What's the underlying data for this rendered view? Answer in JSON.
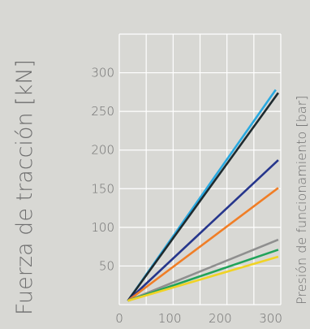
{
  "chart_data": {
    "type": "line",
    "title": "",
    "ylabel": "Fuerza de tracción [kN]",
    "xlabel": "Presión de funcionamiento [bar]",
    "xlim": [
      0,
      320
    ],
    "ylim": [
      0,
      350
    ],
    "xticks": [
      0,
      100,
      200,
      300
    ],
    "yticks": [
      50,
      100,
      150,
      200,
      250,
      300
    ],
    "grid": true,
    "series": [
      {
        "color": "#29a9e0",
        "x": [
          17,
          310
        ],
        "y": [
          5,
          278
        ]
      },
      {
        "color": "#1e2a2e",
        "x": [
          17,
          315
        ],
        "y": [
          5,
          274
        ]
      },
      {
        "color": "#26368c",
        "x": [
          17,
          315
        ],
        "y": [
          5,
          187
        ]
      },
      {
        "color": "#f07e26",
        "x": [
          17,
          315
        ],
        "y": [
          5,
          151
        ]
      },
      {
        "color": "#8f8f8f",
        "x": [
          17,
          315
        ],
        "y": [
          5,
          84
        ]
      },
      {
        "color": "#21a35a",
        "x": [
          17,
          315
        ],
        "y": [
          5,
          71
        ]
      },
      {
        "color": "#f0d325",
        "x": [
          17,
          315
        ],
        "y": [
          5,
          62
        ]
      }
    ]
  }
}
